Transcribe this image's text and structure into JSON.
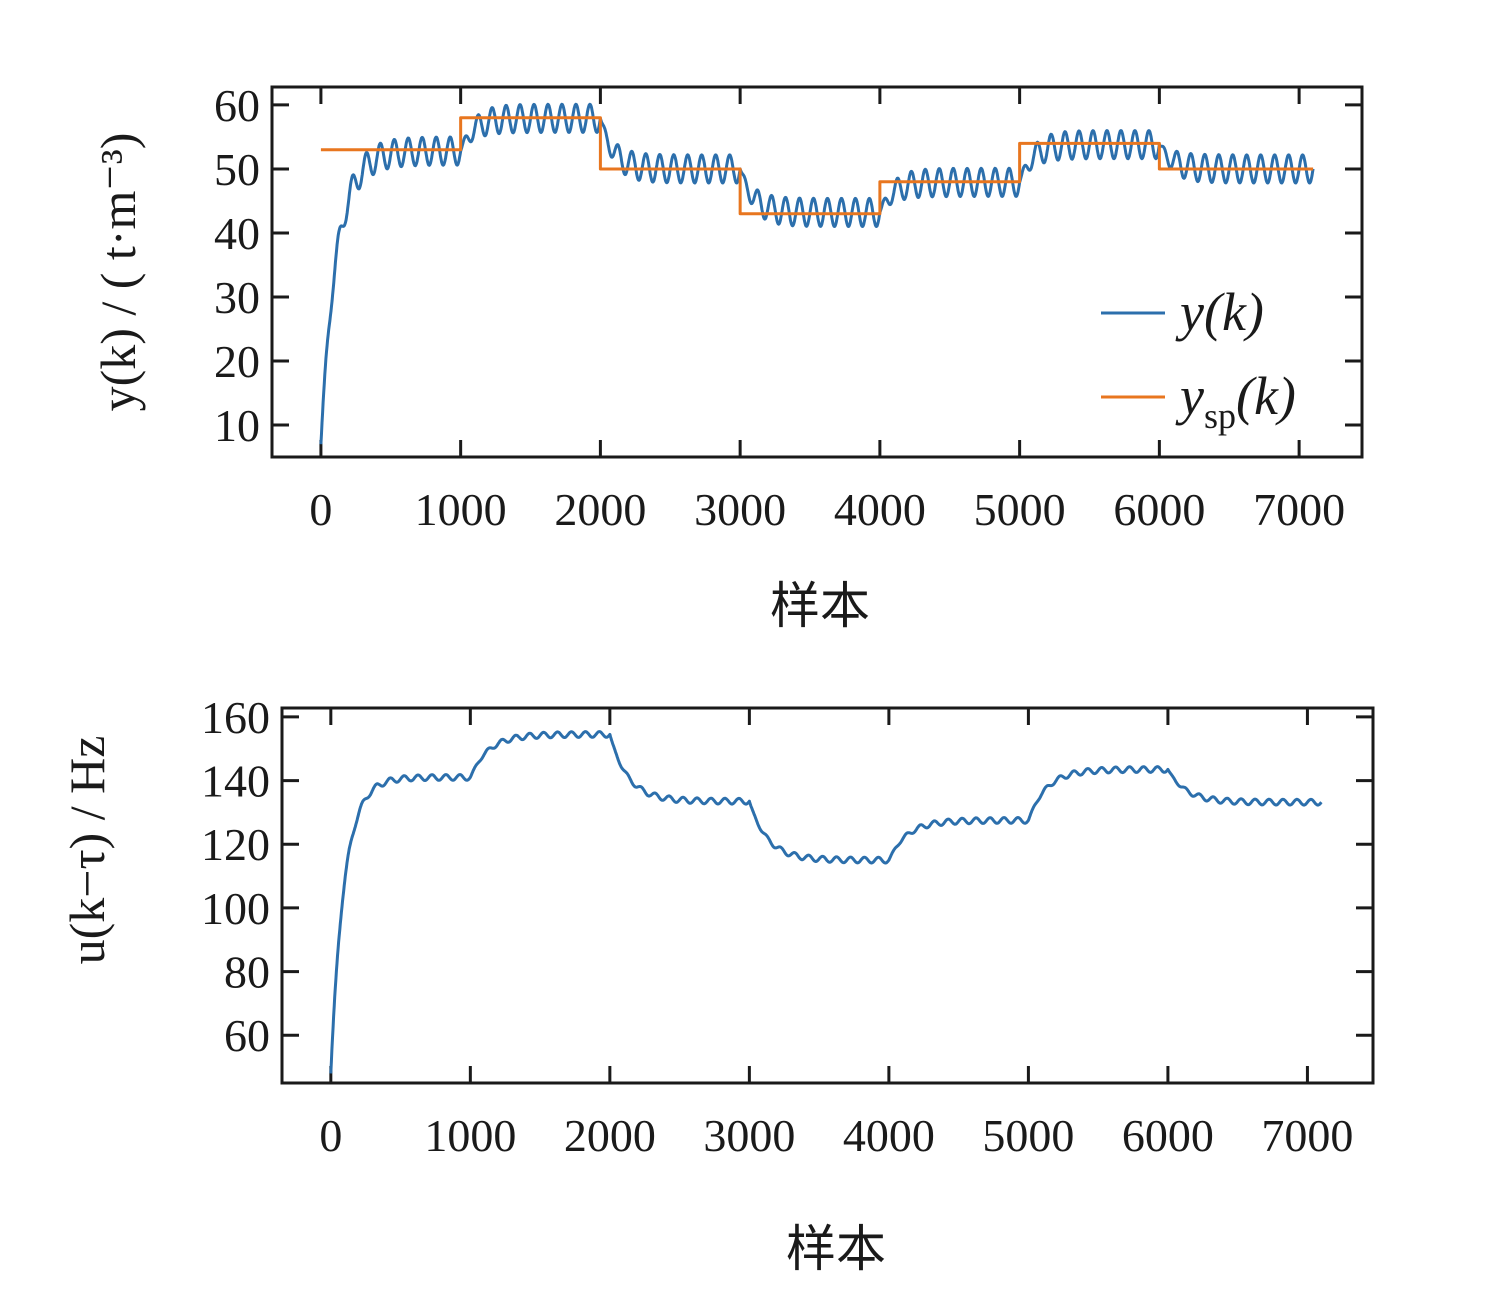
{
  "chart_data": [
    {
      "type": "line",
      "xlabel": "样本",
      "ylabel": "y(k) / ( t·m⁻³)",
      "xlim": [
        -350,
        7450
      ],
      "ylim": [
        5,
        62.8
      ],
      "xticks": [
        0,
        1000,
        2000,
        3000,
        4000,
        5000,
        6000,
        7000
      ],
      "yticks": [
        10,
        20,
        30,
        40,
        50,
        60
      ],
      "legend": {
        "placement": "lower-right",
        "entries": [
          "y(k)",
          "ysp(k)"
        ]
      },
      "grid": false,
      "series": [
        {
          "name": "y(k)",
          "color": "#2c6fac",
          "start_value": 7,
          "x_end": 7100,
          "segments": [
            {
              "from": 0,
              "mean": 52.8,
              "amplitude": 2.2,
              "period": 100,
              "tau": 110
            },
            {
              "from": 1000,
              "mean": 57.9,
              "amplitude": 2.2,
              "period": 100,
              "tau": 90
            },
            {
              "from": 2000,
              "mean": 50.0,
              "amplitude": 2.2,
              "period": 100,
              "tau": 90
            },
            {
              "from": 3000,
              "mean": 43.2,
              "amplitude": 2.2,
              "period": 100,
              "tau": 90
            },
            {
              "from": 4000,
              "mean": 47.9,
              "amplitude": 2.2,
              "period": 100,
              "tau": 90
            },
            {
              "from": 5000,
              "mean": 53.8,
              "amplitude": 2.2,
              "period": 100,
              "tau": 90
            },
            {
              "from": 6000,
              "mean": 50.0,
              "amplitude": 2.2,
              "period": 100,
              "tau": 90
            }
          ]
        },
        {
          "name": "ysp(k)",
          "color": "#e8761f",
          "steps": [
            {
              "from": 0,
              "to": 1000,
              "value": 53
            },
            {
              "from": 1000,
              "to": 2000,
              "value": 58
            },
            {
              "from": 2000,
              "to": 3000,
              "value": 50
            },
            {
              "from": 3000,
              "to": 4000,
              "value": 43
            },
            {
              "from": 4000,
              "to": 5000,
              "value": 48
            },
            {
              "from": 5000,
              "to": 6000,
              "value": 54
            },
            {
              "from": 6000,
              "to": 7100,
              "value": 50
            }
          ]
        }
      ]
    },
    {
      "type": "line",
      "xlabel": "样本",
      "ylabel": "u(k−τ) / Hz",
      "xlim": [
        -350,
        7470
      ],
      "ylim": [
        45,
        162.8
      ],
      "xticks": [
        0,
        1000,
        2000,
        3000,
        4000,
        5000,
        6000,
        7000
      ],
      "yticks": [
        60,
        80,
        100,
        120,
        140,
        160
      ],
      "grid": false,
      "series": [
        {
          "name": "u(k−τ)",
          "color": "#2c6fac",
          "start_value": 48,
          "x_end": 7100,
          "segments": [
            {
              "from": 0,
              "mean": 141,
              "amplitude": 0.9,
              "period": 100,
              "tau": 95
            },
            {
              "from": 1000,
              "mean": 154.5,
              "amplitude": 0.9,
              "period": 100,
              "tau": 130
            },
            {
              "from": 2000,
              "mean": 133.5,
              "amplitude": 0.9,
              "period": 100,
              "tau": 130
            },
            {
              "from": 3000,
              "mean": 115,
              "amplitude": 0.9,
              "period": 100,
              "tau": 130
            },
            {
              "from": 4000,
              "mean": 127.5,
              "amplitude": 0.9,
              "period": 100,
              "tau": 130
            },
            {
              "from": 5000,
              "mean": 143.5,
              "amplitude": 0.9,
              "period": 100,
              "tau": 130
            },
            {
              "from": 6000,
              "mean": 133.2,
              "amplitude": 0.9,
              "period": 100,
              "tau": 130
            }
          ]
        }
      ]
    }
  ]
}
